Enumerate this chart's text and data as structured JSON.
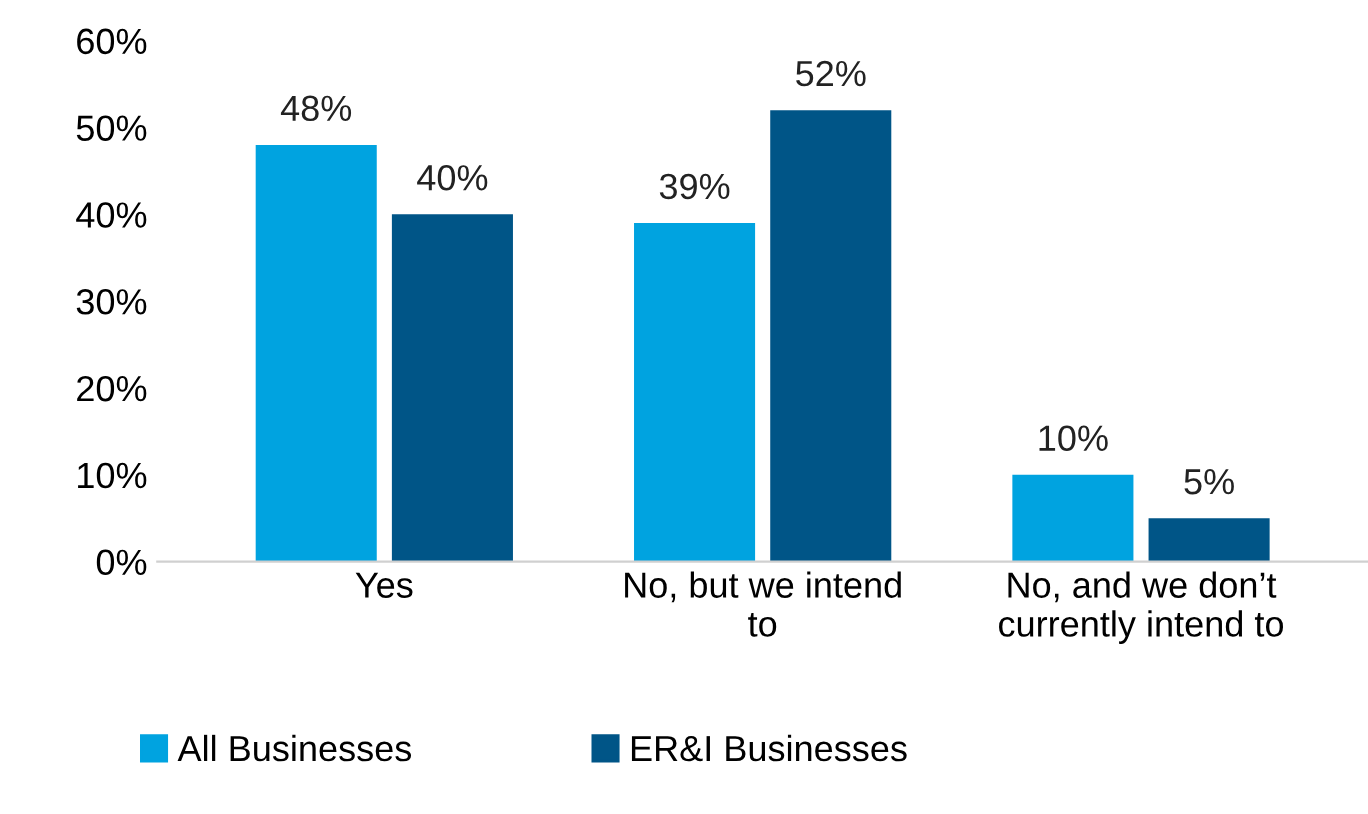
{
  "chart_data": {
    "type": "bar",
    "categories": [
      "Yes",
      "No, but we intend to",
      "No, and we don’t currently intend to"
    ],
    "series": [
      {
        "name": "All Businesses",
        "color": "#00a3e0",
        "values": [
          48,
          39,
          10
        ],
        "value_labels": [
          "48%",
          "39%",
          "10%"
        ]
      },
      {
        "name": "ER&I Businesses",
        "color": "#005587",
        "values": [
          40,
          52,
          5
        ],
        "value_labels": [
          "40%",
          "52%",
          "5%"
        ]
      }
    ],
    "ylim": [
      0,
      60
    ],
    "yticks": [
      {
        "value": 0,
        "label": "0%"
      },
      {
        "value": 10,
        "label": "10%"
      },
      {
        "value": 20,
        "label": "20%"
      },
      {
        "value": 30,
        "label": "30%"
      },
      {
        "value": 40,
        "label": "40%"
      },
      {
        "value": 50,
        "label": "50%"
      },
      {
        "value": 60,
        "label": "60%"
      }
    ],
    "grid": false,
    "legend": "bottom"
  }
}
